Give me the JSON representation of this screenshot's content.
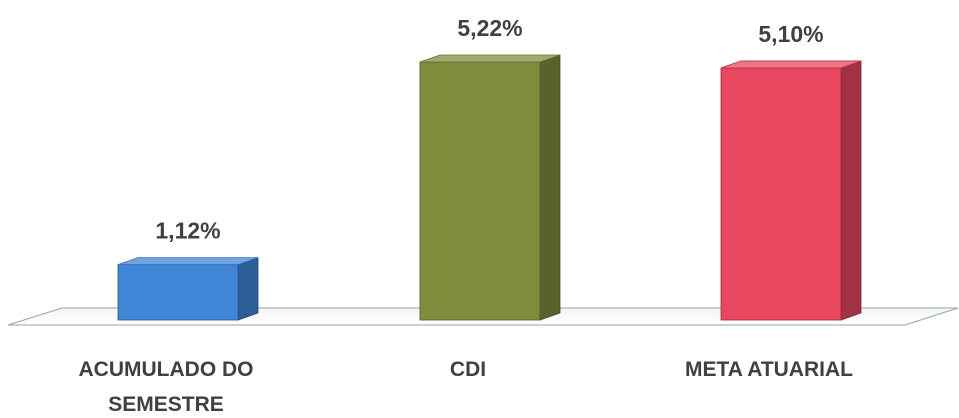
{
  "chart_data": {
    "type": "bar",
    "style": "3d-column",
    "categories": [
      "ACUMULADO DO SEMESTRE",
      "CDI",
      "META ATUARIAL"
    ],
    "category_label_lines": [
      [
        "ACUMULADO DO",
        "SEMESTRE"
      ],
      [
        "CDI"
      ],
      [
        "META ATUARIAL"
      ]
    ],
    "values": [
      1.12,
      5.22,
      5.1
    ],
    "data_labels": [
      "1,12%",
      "5,22%",
      "5,10%"
    ],
    "colors": [
      "#3f86d6",
      "#7f8c3c",
      "#e8475f"
    ],
    "unit": "%",
    "ylim": [
      0,
      5.22
    ],
    "grid": false,
    "legend": "none",
    "title": "",
    "xlabel": "",
    "ylabel": ""
  }
}
